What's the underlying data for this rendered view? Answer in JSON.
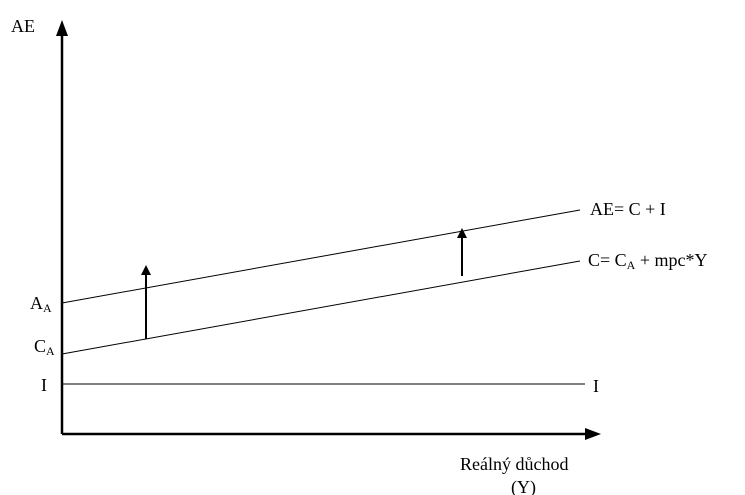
{
  "axes": {
    "y_label": "AE",
    "x_label_line1": "Reálný důchod",
    "x_label_line2": "(Y)"
  },
  "intercepts": {
    "aa": {
      "main": "A",
      "sub": "A"
    },
    "ca": {
      "main": "C",
      "sub": "A"
    },
    "i": "I"
  },
  "lines": {
    "ae": {
      "label": "AE= C + I"
    },
    "c": {
      "label_prefix": "C= C",
      "label_sub": "A",
      "label_suffix": " + mpc*Y"
    },
    "i": {
      "label": "I"
    }
  },
  "colors": {
    "stroke": "#000000",
    "background": "#ffffff"
  }
}
